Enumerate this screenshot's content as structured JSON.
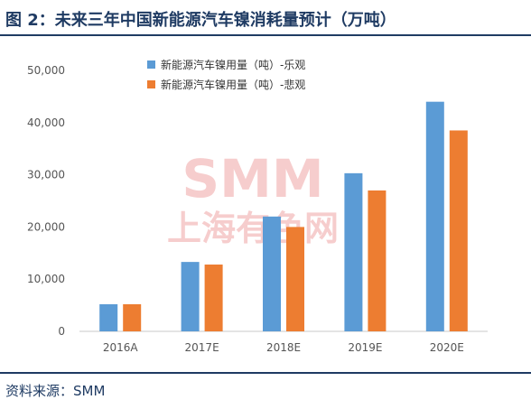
{
  "header": {
    "title": "图 2：未来三年中国新能源汽车镍消耗量预计（万吨）"
  },
  "footer": {
    "source": "资料来源：SMM"
  },
  "watermark": {
    "latin": "SMM",
    "chinese": "上海有色网"
  },
  "chart_data": {
    "type": "bar",
    "title": "",
    "xlabel": "",
    "ylabel": "",
    "categories": [
      "2016A",
      "2017E",
      "2018E",
      "2019E",
      "2020E"
    ],
    "series": [
      {
        "name": "新能源汽车镍用量（吨）-乐观",
        "values": [
          5200,
          13300,
          22000,
          30300,
          44000
        ],
        "color": "#5b9bd5"
      },
      {
        "name": "新能源汽车镍用量（吨）-悲观",
        "values": [
          5200,
          12800,
          20000,
          27000,
          38500
        ],
        "color": "#ed7d31"
      }
    ],
    "ylim": [
      0,
      50000
    ],
    "yticks": [
      "0",
      "10,000",
      "20,000",
      "30,000",
      "40,000",
      "50,000"
    ],
    "ytick_values": [
      0,
      10000,
      20000,
      30000,
      40000,
      50000
    ],
    "grid": false,
    "legend_position": "top-center"
  }
}
